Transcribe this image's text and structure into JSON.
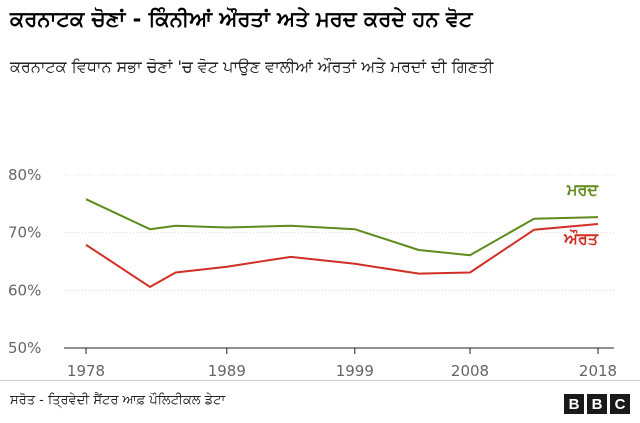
{
  "title": "ਕਰਨਾਟਕ ਚੋਣਾਂ - ਕਿੰਨੀਆਂ ਔਰਤਾਂ ਅਤੇ ਮਰਦ ਕਰਦੇ ਹਨ ਵੋਟ",
  "subtitle": "ਕਰਨਾਟਕ ਵਿਧਾਨ ਸਭਾ ਚੋਣਾਂ 'ਚ ਵੋਟ ਪਾਉਣ ਵਾਲੀਆਂ ਔਰਤਾਂ ਅਤੇ ਮਰਦਾਂ ਦੀ ਗਿਣਤੀ",
  "source": "ਸਰੋਤ - ਤ੍ਰਿਵੇਦੀ ਸੈਂਟਰ ਆਫ਼ ਪੌਲਿਟੀਕਲ ਡੇਟਾ",
  "logo": {
    "letters": [
      "B",
      "B",
      "C"
    ]
  },
  "colors": {
    "men": "#5f8a1c",
    "women": "#d12f24",
    "axis": "#222222",
    "grid": "#dcdcdc"
  },
  "chart_data": {
    "type": "line",
    "title": "ਕਰਨਾਟਕ ਚੋਣਾਂ - ਕਿੰਨੀਆਂ ਔਰਤਾਂ ਅਤੇ ਮਰਦ ਕਰਦੇ ਹਨ ਵੋਟ",
    "xlabel": "",
    "ylabel": "",
    "xlim": [
      1978,
      2018
    ],
    "ylim": [
      50,
      80
    ],
    "x_ticks": [
      1978,
      1989,
      1999,
      2008,
      2018
    ],
    "x_tick_labels": [
      "1978",
      "1989",
      "1999",
      "2008",
      "2018"
    ],
    "y_ticks": [
      50,
      60,
      70,
      80
    ],
    "y_tick_labels": [
      "50%",
      "60%",
      "70%",
      "80%"
    ],
    "grid": true,
    "legend": "inline labels at line ends",
    "series": [
      {
        "name": "ਮਰਦ",
        "color": "#5f8a1c",
        "x": [
          1978,
          1983,
          1985,
          1989,
          1994,
          1999,
          2004,
          2008,
          2013,
          2018
        ],
        "y": [
          75.8,
          70.6,
          71.2,
          70.9,
          71.2,
          70.6,
          67.0,
          66.1,
          72.4,
          72.7
        ]
      },
      {
        "name": "ਔਰਤ",
        "color": "#d12f24",
        "x": [
          1978,
          1983,
          1985,
          1989,
          1994,
          1999,
          2004,
          2008,
          2013,
          2018
        ],
        "y": [
          67.9,
          60.6,
          63.1,
          64.1,
          65.8,
          64.6,
          62.9,
          63.1,
          70.5,
          71.5
        ]
      }
    ]
  }
}
